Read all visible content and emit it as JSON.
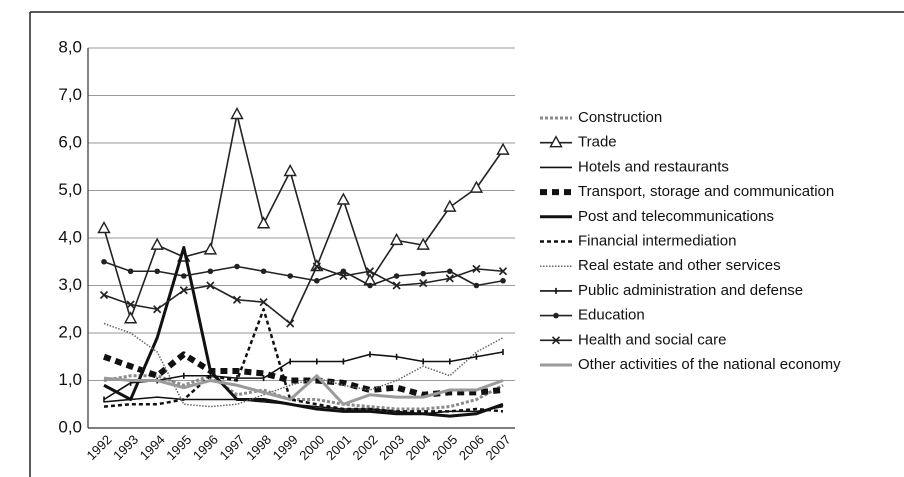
{
  "chart_data": {
    "type": "line",
    "categories": [
      "1992",
      "1993",
      "1994",
      "1995",
      "1996",
      "1997",
      "1998",
      "1999",
      "2000",
      "2001",
      "2002",
      "2003",
      "2004",
      "2005",
      "2006",
      "2007"
    ],
    "ylim": [
      0,
      8
    ],
    "yticks": [
      {
        "value": 0,
        "label": "0,0"
      },
      {
        "value": 1,
        "label": "1,0"
      },
      {
        "value": 2,
        "label": "2,0"
      },
      {
        "value": 3,
        "label": "3,0"
      },
      {
        "value": 4,
        "label": "4,0"
      },
      {
        "value": 5,
        "label": "5,0"
      },
      {
        "value": 6,
        "label": "6,0"
      },
      {
        "value": 7,
        "label": "7,0"
      },
      {
        "value": 8,
        "label": "8,0"
      }
    ],
    "grid": true,
    "legend": "right",
    "series": [
      {
        "name": "Construction",
        "color": "#8a8a8a",
        "style": "dotted",
        "marker": "none",
        "values": [
          1.0,
          1.1,
          1.1,
          0.9,
          1.1,
          0.7,
          0.8,
          0.6,
          0.6,
          0.5,
          0.45,
          0.4,
          0.4,
          0.45,
          0.6,
          0.9
        ]
      },
      {
        "name": "Trade",
        "color": "#222222",
        "style": "solid",
        "marker": "triangle",
        "values": [
          4.2,
          2.3,
          3.85,
          3.6,
          3.75,
          6.6,
          4.3,
          5.4,
          3.4,
          4.8,
          3.1,
          3.95,
          3.85,
          4.65,
          5.05,
          5.85
        ]
      },
      {
        "name": "Hotels and restaurants",
        "color": "#111111",
        "style": "solid",
        "marker": "none",
        "values": [
          0.55,
          0.6,
          0.65,
          0.6,
          0.6,
          0.6,
          0.55,
          0.5,
          0.45,
          0.4,
          0.4,
          0.35,
          0.3,
          0.35,
          0.35,
          0.45
        ]
      },
      {
        "name": "Transport, storage and communication",
        "color": "#111111",
        "style": "thick-dashed",
        "marker": "none",
        "values": [
          1.5,
          1.3,
          1.1,
          1.55,
          1.2,
          1.2,
          1.15,
          1.0,
          1.0,
          0.95,
          0.8,
          0.85,
          0.7,
          0.75,
          0.75,
          0.8
        ]
      },
      {
        "name": "Post and telecommunications",
        "color": "#111111",
        "style": "thick",
        "marker": "none",
        "values": [
          0.9,
          0.6,
          1.9,
          3.8,
          1.2,
          0.6,
          0.6,
          0.5,
          0.4,
          0.35,
          0.35,
          0.3,
          0.3,
          0.25,
          0.3,
          0.5
        ]
      },
      {
        "name": "Financial intermediation",
        "color": "#111111",
        "style": "dashed",
        "marker": "none",
        "values": [
          0.45,
          0.5,
          0.5,
          0.6,
          1.1,
          1.0,
          2.5,
          0.6,
          0.5,
          0.4,
          0.4,
          0.35,
          0.35,
          0.35,
          0.4,
          0.35
        ]
      },
      {
        "name": "Real estate and other services",
        "color": "#666666",
        "style": "fine-dotted",
        "marker": "none",
        "values": [
          2.2,
          2.0,
          1.6,
          0.5,
          0.45,
          0.5,
          0.7,
          0.9,
          1.05,
          0.9,
          0.8,
          1.0,
          1.3,
          1.1,
          1.6,
          1.9
        ]
      },
      {
        "name": "Public administration and defense",
        "color": "#111111",
        "style": "solid",
        "marker": "tick",
        "values": [
          0.6,
          0.95,
          1.0,
          1.1,
          1.1,
          1.05,
          1.05,
          1.4,
          1.4,
          1.4,
          1.55,
          1.5,
          1.4,
          1.4,
          1.5,
          1.6
        ]
      },
      {
        "name": "Education",
        "color": "#222222",
        "style": "solid",
        "marker": "circle",
        "values": [
          3.5,
          3.3,
          3.3,
          3.2,
          3.3,
          3.4,
          3.3,
          3.2,
          3.1,
          3.3,
          3.0,
          3.2,
          3.25,
          3.3,
          3.0,
          3.1
        ]
      },
      {
        "name": "Health and social care",
        "color": "#222222",
        "style": "solid",
        "marker": "x",
        "values": [
          2.8,
          2.6,
          2.5,
          2.9,
          3.0,
          2.7,
          2.65,
          2.2,
          3.4,
          3.2,
          3.3,
          3.0,
          3.05,
          3.15,
          3.35,
          3.3
        ]
      },
      {
        "name": "Other activities of the national economy",
        "color": "#9a9a9a",
        "style": "thick",
        "marker": "none",
        "values": [
          1.05,
          1.0,
          1.0,
          0.85,
          1.0,
          0.9,
          0.75,
          0.6,
          1.1,
          0.5,
          0.7,
          0.65,
          0.65,
          0.8,
          0.8,
          1.0
        ]
      }
    ]
  }
}
